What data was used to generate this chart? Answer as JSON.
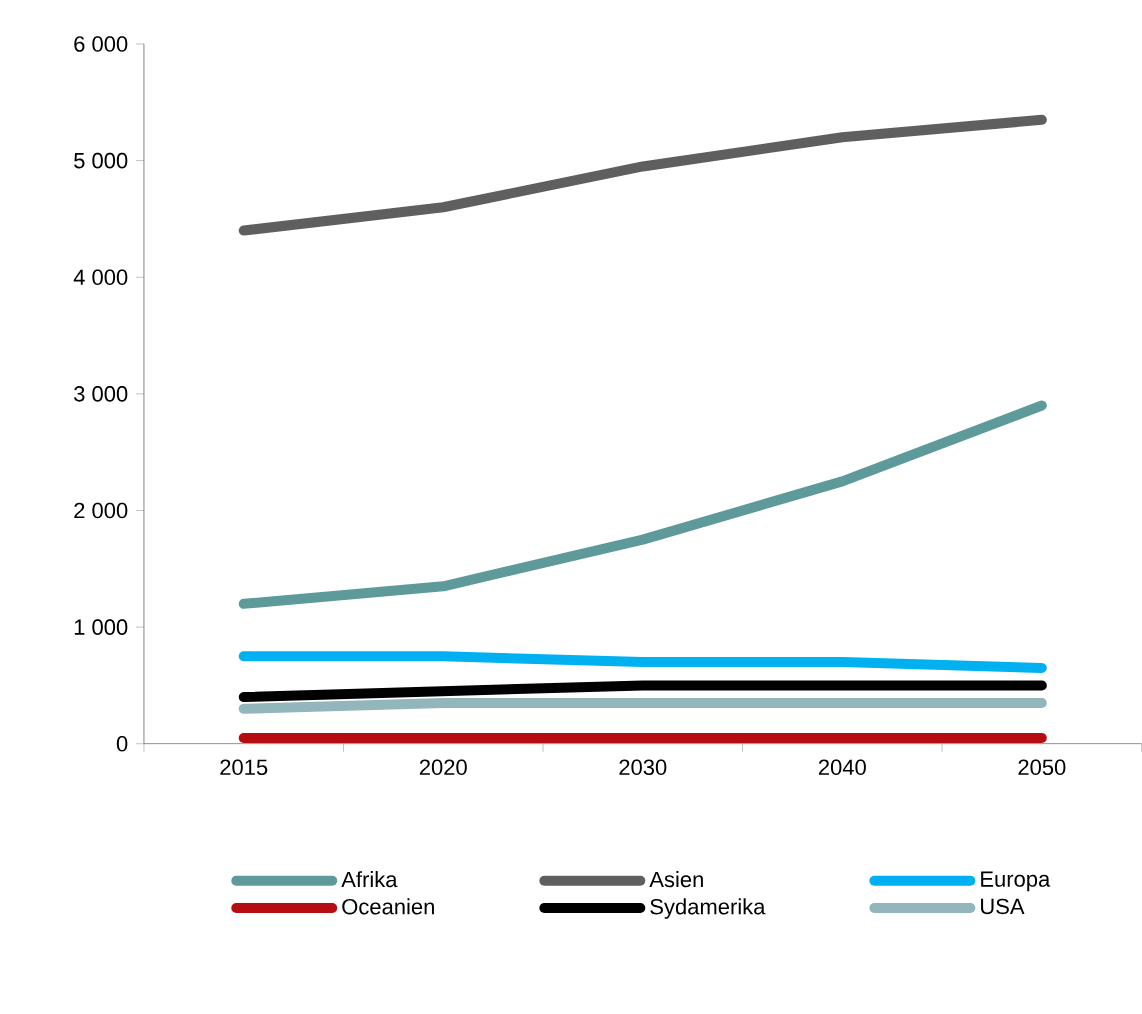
{
  "chart_data": {
    "type": "line",
    "categories": [
      "2015",
      "2020",
      "2030",
      "2040",
      "2050"
    ],
    "series": [
      {
        "name": "Afrika",
        "color": "#5f9a9b",
        "values": [
          1200,
          1350,
          1750,
          2250,
          2900
        ]
      },
      {
        "name": "Asien",
        "color": "#5f5f5f",
        "values": [
          4400,
          4600,
          4950,
          5200,
          5350
        ]
      },
      {
        "name": "Europa",
        "color": "#00b0f0",
        "values": [
          750,
          750,
          700,
          700,
          650
        ]
      },
      {
        "name": "Oceanien",
        "color": "#b50d10",
        "values": [
          50,
          50,
          50,
          50,
          50
        ]
      },
      {
        "name": "Sydamerika",
        "color": "#000000",
        "values": [
          400,
          450,
          500,
          500,
          500
        ]
      },
      {
        "name": "USA",
        "color": "#93b6bd",
        "values": [
          300,
          350,
          350,
          350,
          350
        ]
      }
    ],
    "ylim": [
      0,
      6000
    ],
    "yticks": [
      {
        "value": 0,
        "label": "0"
      },
      {
        "value": 1000,
        "label": "1 000"
      },
      {
        "value": 2000,
        "label": "2 000"
      },
      {
        "value": 3000,
        "label": "3 000"
      },
      {
        "value": 4000,
        "label": "4 000"
      },
      {
        "value": 5000,
        "label": "5 000"
      },
      {
        "value": 6000,
        "label": "6 000"
      }
    ],
    "grid": false,
    "legend": "bottom",
    "marker": "none",
    "line_style": "solid"
  }
}
